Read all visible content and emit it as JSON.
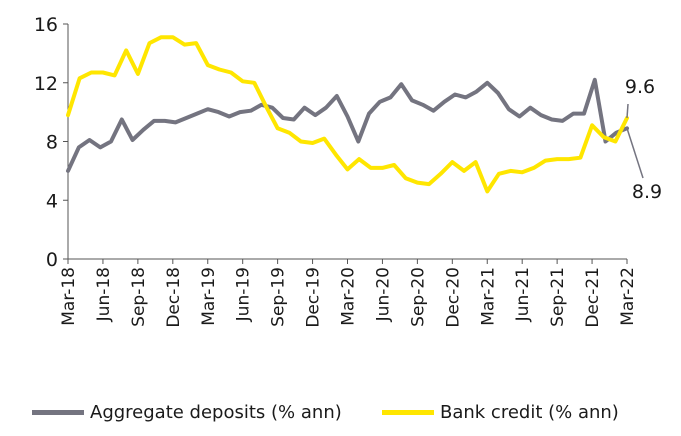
{
  "chart_data": {
    "type": "line",
    "title": "",
    "xlabel": "",
    "ylabel": "",
    "ylim": [
      0,
      16
    ],
    "yticks": [
      "0",
      "4",
      "8",
      "12",
      "16"
    ],
    "xticks": [
      "Mar-18",
      "Jun-18",
      "Sep-18",
      "Dec-18",
      "Mar-19",
      "Jun-19",
      "Sep-19",
      "Dec-19",
      "Mar-20",
      "Jun-20",
      "Sep-20",
      "Dec-20",
      "Mar-21",
      "Jun-21",
      "Sep-21",
      "Dec-21",
      "Mar-22"
    ],
    "grid": false,
    "legend_position": "bottom",
    "series": [
      {
        "name": "Aggregate deposits (% ann)",
        "color": "#747480",
        "values": [
          6.0,
          7.6,
          8.1,
          7.6,
          8.0,
          9.5,
          8.1,
          8.8,
          9.4,
          9.4,
          9.3,
          9.6,
          9.9,
          10.2,
          10.0,
          9.7,
          10.0,
          10.1,
          10.5,
          10.3,
          9.6,
          9.5,
          10.3,
          9.8,
          10.3,
          11.1,
          9.7,
          8.0,
          9.9,
          10.7,
          11.0,
          11.9,
          10.8,
          10.5,
          10.1,
          10.7,
          11.2,
          11.0,
          11.4,
          12.0,
          11.3,
          10.2,
          9.7,
          10.3,
          9.8,
          9.5,
          9.4,
          9.9,
          9.9,
          12.2,
          8.0,
          8.6,
          8.9
        ]
      },
      {
        "name": "Bank credit (% ann)",
        "color": "#ffe600",
        "values": [
          9.8,
          12.3,
          12.7,
          12.7,
          12.5,
          14.2,
          12.6,
          14.7,
          15.1,
          15.1,
          14.6,
          14.7,
          13.2,
          12.9,
          12.7,
          12.1,
          12.0,
          10.4,
          8.9,
          8.6,
          8.0,
          7.9,
          8.2,
          7.1,
          6.1,
          6.8,
          6.2,
          6.2,
          6.4,
          5.5,
          5.2,
          5.1,
          5.8,
          6.6,
          6.0,
          6.6,
          4.6,
          5.8,
          6.0,
          5.9,
          6.2,
          6.7,
          6.8,
          6.8,
          6.9,
          9.1,
          8.3,
          8.0,
          9.6
        ]
      }
    ],
    "annotations": [
      {
        "text": "9.6",
        "series": "Bank credit (% ann)"
      },
      {
        "text": "8.9",
        "series": "Aggregate deposits (% ann)"
      }
    ]
  }
}
